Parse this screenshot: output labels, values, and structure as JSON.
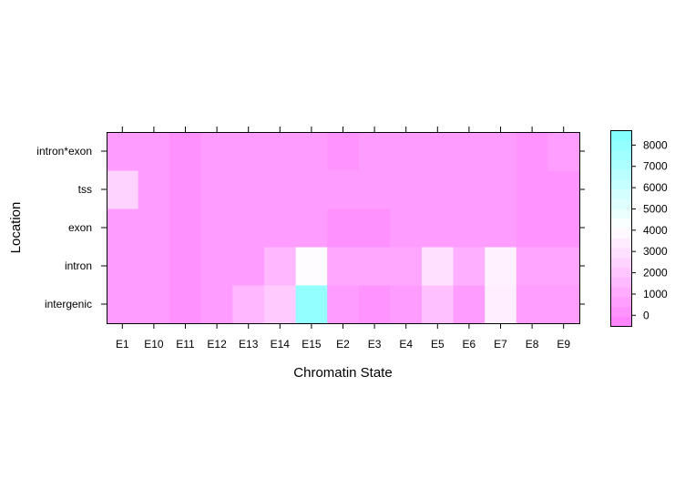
{
  "chart_data": {
    "type": "heatmap",
    "title": "",
    "xlabel": "Chromatin State",
    "ylabel": "Location",
    "x_categories": [
      "E1",
      "E10",
      "E11",
      "E12",
      "E13",
      "E14",
      "E15",
      "E2",
      "E3",
      "E4",
      "E5",
      "E6",
      "E7",
      "E8",
      "E9"
    ],
    "y_categories": [
      "intergenic",
      "intron",
      "exon",
      "tss",
      "intron*exon"
    ],
    "values": [
      [
        500,
        500,
        100,
        500,
        1500,
        2200,
        8000,
        500,
        200,
        500,
        1800,
        500,
        3500,
        600,
        600
      ],
      [
        500,
        500,
        100,
        500,
        500,
        1500,
        4000,
        900,
        900,
        900,
        3000,
        1200,
        3600,
        800,
        800
      ],
      [
        500,
        500,
        100,
        500,
        500,
        500,
        500,
        100,
        100,
        500,
        500,
        500,
        500,
        200,
        200
      ],
      [
        2500,
        500,
        100,
        500,
        500,
        500,
        500,
        500,
        500,
        500,
        500,
        500,
        500,
        200,
        200
      ],
      [
        500,
        500,
        100,
        500,
        500,
        500,
        500,
        200,
        500,
        500,
        500,
        500,
        500,
        200,
        600
      ]
    ],
    "colorbar": {
      "ticks": [
        0,
        1000,
        2000,
        3000,
        4000,
        5000,
        6000,
        7000,
        8000
      ],
      "range": [
        -500,
        8700
      ]
    },
    "grid": false
  }
}
